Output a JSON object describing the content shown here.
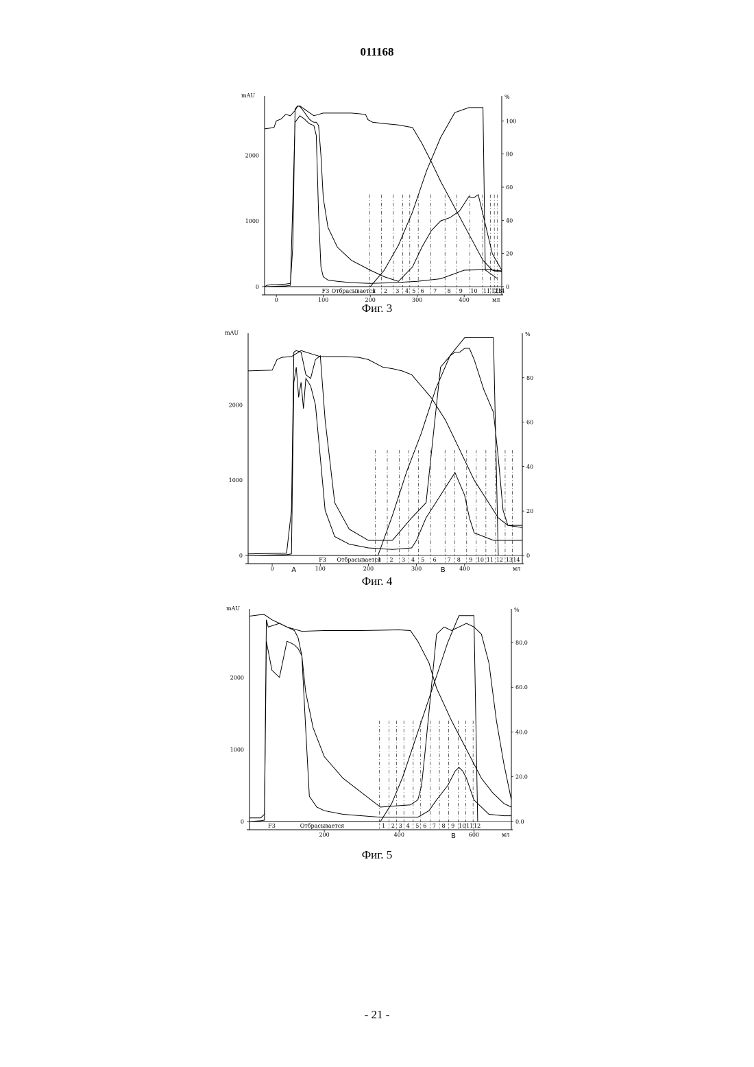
{
  "document": {
    "number": "011168",
    "page_number": "- 21 -"
  },
  "chart_data": [
    {
      "type": "line",
      "caption": "Фиг. 3",
      "y_left_label": "mAU",
      "y_right_label": "%",
      "x_unit": "мл",
      "xlim": [
        -25,
        480
      ],
      "ylim_left": [
        0,
        2900
      ],
      "ylim_right": [
        0,
        115
      ],
      "x_ticks": [
        0,
        100,
        200,
        300,
        400
      ],
      "y_left_ticks": [
        0,
        1000,
        2000
      ],
      "y_right_ticks": [
        0,
        20,
        40,
        60,
        80,
        100
      ],
      "fraction_labels": {
        "start": "F3",
        "waste": "Отбрасывается",
        "fractions": [
          "1",
          "2",
          "3",
          "4",
          "5",
          "6",
          "7",
          "8",
          "9",
          "10",
          "11",
          "12",
          "13",
          "14"
        ]
      },
      "fraction_x": [
        205,
        230,
        255,
        275,
        290,
        308,
        335,
        365,
        390,
        418,
        445,
        462,
        470,
        476
      ],
      "marks": [],
      "series": [
        {
          "x": [
            -25,
            -5,
            0,
            10,
            20,
            30,
            40,
            45,
            50,
            60,
            70,
            80,
            90,
            100,
            110,
            130,
            160,
            190,
            195,
            205,
            230,
            260,
            290,
            310,
            330,
            350,
            380,
            410,
            440,
            460,
            470,
            480
          ],
          "y": [
            2400,
            2420,
            2520,
            2550,
            2620,
            2600,
            2680,
            2740,
            2750,
            2700,
            2650,
            2600,
            2620,
            2640,
            2640,
            2640,
            2640,
            2620,
            2540,
            2500,
            2480,
            2460,
            2420,
            2180,
            1900,
            1600,
            1200,
            800,
            400,
            250,
            230,
            230
          ]
        },
        {
          "x": [
            -25,
            -20,
            -10,
            0,
            20,
            30,
            35,
            40,
            45,
            50,
            55,
            60,
            65,
            70,
            75,
            80,
            85,
            90,
            95,
            100,
            110,
            130,
            160,
            200,
            230,
            260,
            290,
            310,
            330,
            350,
            370,
            390,
            410,
            420,
            430,
            440,
            460,
            480
          ],
          "y": [
            0,
            20,
            30,
            30,
            40,
            50,
            600,
            2700,
            2750,
            2740,
            2700,
            2650,
            2600,
            2550,
            2520,
            2500,
            2500,
            2450,
            2000,
            1350,
            900,
            600,
            400,
            250,
            150,
            80,
            300,
            600,
            850,
            1000,
            1050,
            1150,
            1370,
            1350,
            1400,
            1100,
            500,
            250
          ]
        },
        {
          "x": [
            -25,
            20,
            30,
            40,
            50,
            60,
            70,
            80,
            85,
            90,
            95,
            100,
            110,
            130,
            160,
            200,
            250,
            300,
            350,
            400,
            450,
            480
          ],
          "y": [
            0,
            10,
            20,
            2500,
            2600,
            2550,
            2480,
            2450,
            2300,
            1100,
            300,
            150,
            100,
            80,
            60,
            50,
            60,
            80,
            120,
            250,
            260,
            240
          ]
        },
        {
          "x": [
            -25,
            200,
            230,
            260,
            290,
            320,
            350,
            380,
            410,
            440,
            445,
            470
          ],
          "y": [
            0,
            0,
            0,
            0,
            0,
            0,
            0,
            0,
            0,
            0,
            0,
            0
          ],
          "pct": [
            0,
            0,
            10,
            25,
            45,
            70,
            90,
            105,
            108,
            108,
            10,
            5
          ]
        }
      ]
    },
    {
      "type": "line",
      "caption": "Фиг. 4",
      "y_left_label": "mAU",
      "y_right_label": "%",
      "x_unit": "мл",
      "xlim": [
        -50,
        520
      ],
      "ylim_left": [
        0,
        2950
      ],
      "ylim_right": [
        0,
        100
      ],
      "x_ticks": [
        0,
        100,
        200,
        300,
        400
      ],
      "y_left_ticks": [
        0,
        1000,
        2000
      ],
      "y_right_ticks": [
        0,
        20,
        40,
        60,
        80
      ],
      "fraction_labels": {
        "start": "F3",
        "waste": "Отбрасывается",
        "fractions": [
          "1",
          "2",
          "3",
          "4",
          "5",
          "6",
          "7",
          "8",
          "9",
          "10",
          "11",
          "12",
          "13",
          "14"
        ]
      },
      "fraction_x": [
        220,
        245,
        270,
        290,
        310,
        335,
        365,
        385,
        410,
        430,
        450,
        470,
        490,
        505
      ],
      "marks": [
        {
          "label": "A",
          "x": 45
        },
        {
          "label": "B",
          "x": 355
        }
      ],
      "series": [
        {
          "x": [
            -50,
            0,
            10,
            20,
            40,
            50,
            60,
            70,
            80,
            100,
            150,
            180,
            200,
            230,
            250,
            270,
            290,
            310,
            330,
            360,
            390,
            420,
            450,
            470,
            490,
            510,
            520
          ],
          "y": [
            2450,
            2460,
            2600,
            2630,
            2640,
            2680,
            2720,
            2700,
            2680,
            2640,
            2640,
            2630,
            2600,
            2500,
            2480,
            2450,
            2400,
            2250,
            2100,
            1800,
            1400,
            1000,
            700,
            500,
            400,
            380,
            370
          ]
        },
        {
          "x": [
            -50,
            30,
            40,
            45,
            50,
            60,
            65,
            70,
            80,
            90,
            100,
            110,
            130,
            160,
            200,
            250,
            290,
            320,
            350,
            370,
            380,
            390,
            400,
            410,
            420,
            440,
            460,
            470,
            480,
            490,
            520
          ],
          "y": [
            20,
            30,
            600,
            2700,
            2720,
            2700,
            2550,
            2400,
            2350,
            2600,
            2650,
            1800,
            700,
            350,
            200,
            200,
            500,
            700,
            2500,
            2650,
            2700,
            2700,
            2750,
            2750,
            2600,
            2200,
            1900,
            1300,
            600,
            400,
            400
          ]
        },
        {
          "x": [
            -50,
            30,
            40,
            45,
            50,
            55,
            60,
            65,
            70,
            80,
            90,
            100,
            110,
            130,
            160,
            200,
            250,
            290,
            300,
            320,
            340,
            360,
            380,
            400,
            410,
            420,
            440,
            460,
            480,
            520
          ],
          "y": [
            0,
            10,
            20,
            2300,
            2500,
            2100,
            2300,
            1950,
            2350,
            2250,
            2000,
            1300,
            600,
            250,
            150,
            100,
            80,
            100,
            200,
            500,
            700,
            900,
            1100,
            800,
            500,
            300,
            250,
            200,
            200,
            200
          ]
        },
        {
          "x": [
            -50,
            200,
            220,
            250,
            280,
            310,
            340,
            370,
            400,
            420,
            440,
            460,
            470
          ],
          "y": [
            0,
            0,
            0,
            0,
            0,
            0,
            0,
            0,
            0,
            0,
            0,
            0,
            0
          ],
          "pct": [
            0,
            0,
            0,
            18,
            38,
            55,
            75,
            90,
            98,
            98,
            98,
            98,
            0
          ]
        }
      ]
    },
    {
      "type": "line",
      "caption": "Фиг. 5",
      "y_left_label": "mAU",
      "y_right_label": "%",
      "x_unit": "мл",
      "xlim": [
        0,
        700
      ],
      "ylim_left": [
        0,
        2950
      ],
      "ylim_right": [
        0,
        95
      ],
      "x_ticks": [
        200,
        400,
        600
      ],
      "y_left_ticks": [
        0,
        1000,
        2000
      ],
      "y_right_ticks": [
        0.0,
        20.0,
        40.0,
        60.0,
        80.0
      ],
      "fraction_labels": {
        "start": "F3",
        "waste": "Отбрасывается",
        "fractions": [
          "1",
          "2",
          "3",
          "4",
          "5",
          "6",
          "7",
          "8",
          "9",
          "10",
          "11",
          "12"
        ]
      },
      "fraction_x": [
        355,
        380,
        400,
        420,
        445,
        465,
        490,
        515,
        540,
        565,
        585,
        605
      ],
      "marks": [
        {
          "label": "B",
          "x": 545
        }
      ],
      "series": [
        {
          "x": [
            0,
            30,
            40,
            60,
            80,
            100,
            140,
            200,
            300,
            400,
            430,
            450,
            480,
            500,
            540,
            580,
            620,
            650,
            680,
            700
          ],
          "y": [
            2850,
            2870,
            2870,
            2800,
            2750,
            2700,
            2640,
            2650,
            2650,
            2660,
            2650,
            2500,
            2200,
            1850,
            1400,
            1000,
            600,
            400,
            250,
            200
          ]
        },
        {
          "x": [
            0,
            30,
            40,
            45,
            50,
            80,
            100,
            120,
            130,
            140,
            150,
            170,
            200,
            250,
            300,
            350,
            400,
            430,
            450,
            460,
            470,
            500,
            520,
            540,
            560,
            580,
            600,
            620,
            640,
            660,
            680,
            700
          ],
          "y": [
            50,
            50,
            100,
            2800,
            2700,
            2750,
            2700,
            2650,
            2550,
            2300,
            1800,
            1300,
            900,
            600,
            400,
            200,
            220,
            230,
            300,
            500,
            1000,
            2600,
            2700,
            2650,
            2700,
            2750,
            2700,
            2600,
            2200,
            1400,
            800,
            300
          ]
        },
        {
          "x": [
            0,
            30,
            40,
            45,
            60,
            80,
            100,
            110,
            120,
            130,
            140,
            150,
            160,
            180,
            200,
            250,
            300,
            350,
            400,
            450,
            480,
            500,
            530,
            550,
            560,
            570,
            580,
            600,
            640,
            680,
            700
          ],
          "y": [
            0,
            10,
            20,
            2500,
            2100,
            2000,
            2500,
            2480,
            2450,
            2400,
            2300,
            1300,
            350,
            200,
            150,
            100,
            80,
            60,
            60,
            60,
            150,
            300,
            500,
            700,
            750,
            700,
            600,
            300,
            100,
            80,
            80
          ]
        },
        {
          "x": [
            0,
            350,
            380,
            410,
            440,
            470,
            500,
            530,
            560,
            600,
            610
          ],
          "y": [
            0,
            0,
            0,
            0,
            0,
            0,
            0,
            0,
            0,
            0,
            0
          ],
          "pct": [
            0,
            0,
            8,
            20,
            35,
            50,
            65,
            80,
            92,
            92,
            0
          ]
        }
      ]
    }
  ]
}
